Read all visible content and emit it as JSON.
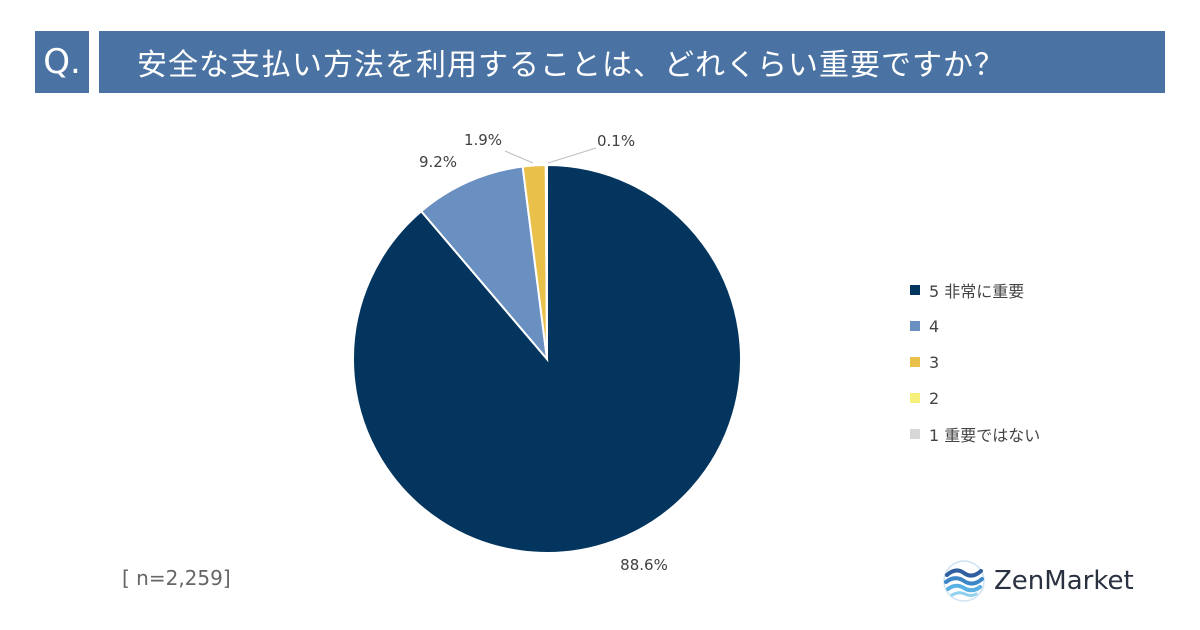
{
  "header": {
    "q_label": "Q.",
    "question": "安全な支払い方法を利用することは、どれくらい重要ですか？"
  },
  "chart_data": {
    "type": "pie",
    "title": "安全な支払い方法を利用することは、どれくらい重要ですか？",
    "slices": [
      {
        "label": "5 非常に重要",
        "value": 88.6,
        "display": "88.6%",
        "color": "#03355e"
      },
      {
        "label": "4",
        "value": 9.2,
        "display": "9.2%",
        "color": "#6a8fc1"
      },
      {
        "label": "3",
        "value": 1.9,
        "display": "1.9%",
        "color": "#e8c04a"
      },
      {
        "label": "2",
        "value": 0.1,
        "display": "0.1%",
        "color": "#f6f07a"
      },
      {
        "label": "1 重要ではない",
        "value": 0.0,
        "display": "",
        "color": "#d7d7d7"
      }
    ],
    "legend_position": "right"
  },
  "footer": {
    "sample_size": "[ n=2,259]",
    "brand": "ZenMarket"
  },
  "colors": {
    "header_bg": "#4a73a3"
  }
}
